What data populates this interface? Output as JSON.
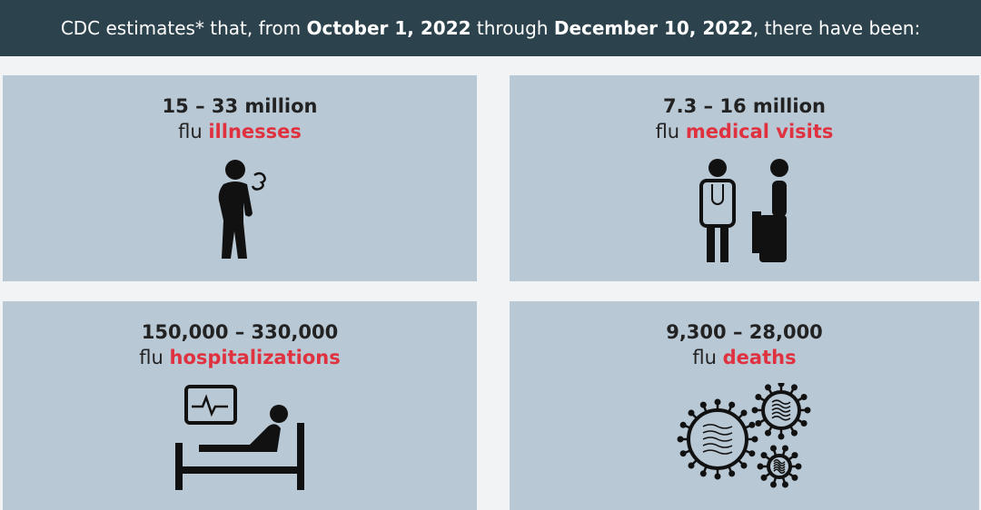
{
  "header": {
    "parts": [
      {
        "text": "CDC estimates* that, from ",
        "bold": false
      },
      {
        "text": "October 1, 2022",
        "bold": true
      },
      {
        "text": " through ",
        "bold": false
      },
      {
        "text": "December 10, 2022",
        "bold": true
      },
      {
        "text": ", there have been:",
        "bold": false
      }
    ]
  },
  "cards": [
    {
      "range": "15 – 33 million",
      "prefix": "flu",
      "highlight": "illnesses"
    },
    {
      "range": "7.3 – 16 million",
      "prefix": "flu",
      "highlight": "medical visits"
    },
    {
      "range": "150,000 – 330,000",
      "prefix": "flu",
      "highlight": "hospitalizations"
    },
    {
      "range": "9,300 – 28,000",
      "prefix": "flu",
      "highlight": "deaths"
    }
  ]
}
